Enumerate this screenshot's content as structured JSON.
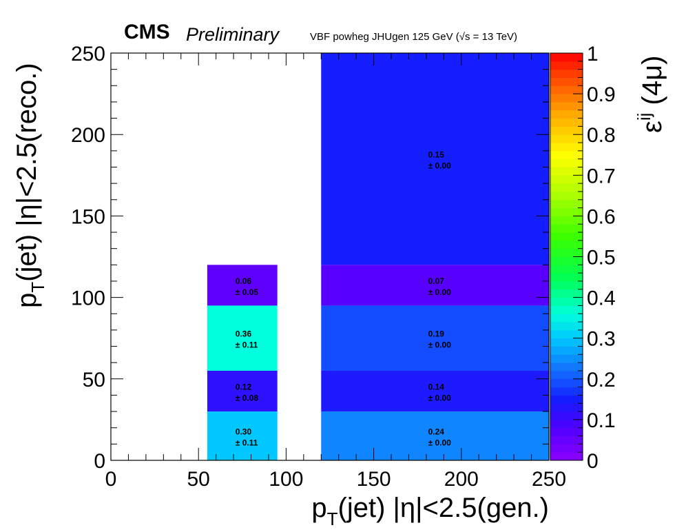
{
  "header": {
    "experiment": "CMS",
    "status": "Preliminary",
    "process": "VBF powheg JHUgen 125 GeV (√s = 13 TeV)"
  },
  "chart_data": {
    "type": "heatmap",
    "xlabel": {
      "main": "p",
      "sub": "T",
      "rest": "(jet) |η|<2.5(gen.)"
    },
    "ylabel": {
      "main": "p",
      "sub": "T",
      "rest": "(jet) |η|<2.5(reco.)"
    },
    "zlabel": {
      "main": "ε",
      "sup": "ij",
      "rest": " (4μ)"
    },
    "xlim": [
      0,
      250
    ],
    "ylim": [
      0,
      250
    ],
    "zlim": [
      0,
      1
    ],
    "x_ticks": [
      0,
      50,
      100,
      150,
      200,
      250
    ],
    "y_ticks": [
      0,
      50,
      100,
      150,
      200,
      250
    ],
    "z_ticks": [
      0,
      0.1,
      0.2,
      0.3,
      0.4,
      0.5,
      0.6,
      0.7,
      0.8,
      0.9,
      1
    ],
    "cells": [
      {
        "x": [
          55,
          95
        ],
        "y": [
          0,
          30
        ],
        "value": 0.3,
        "label": "0.30",
        "error_label": "± 0.11"
      },
      {
        "x": [
          55,
          95
        ],
        "y": [
          30,
          55
        ],
        "value": 0.12,
        "label": "0.12",
        "error_label": "± 0.08"
      },
      {
        "x": [
          55,
          95
        ],
        "y": [
          55,
          95
        ],
        "value": 0.36,
        "label": "0.36",
        "error_label": "± 0.11"
      },
      {
        "x": [
          55,
          95
        ],
        "y": [
          95,
          120
        ],
        "value": 0.06,
        "label": "0.06",
        "error_label": "± 0.05"
      },
      {
        "x": [
          120,
          250
        ],
        "y": [
          0,
          30
        ],
        "value": 0.24,
        "label": "0.24",
        "error_label": "± 0.00"
      },
      {
        "x": [
          120,
          250
        ],
        "y": [
          30,
          55
        ],
        "value": 0.14,
        "label": "0.14",
        "error_label": "± 0.00"
      },
      {
        "x": [
          120,
          250
        ],
        "y": [
          55,
          95
        ],
        "value": 0.19,
        "label": "0.19",
        "error_label": "± 0.00"
      },
      {
        "x": [
          120,
          250
        ],
        "y": [
          95,
          120
        ],
        "value": 0.07,
        "label": "0.07",
        "error_label": "± 0.00"
      },
      {
        "x": [
          120,
          250
        ],
        "y": [
          120,
          250
        ],
        "value": 0.15,
        "label": "0.15",
        "error_label": "± 0.00"
      }
    ],
    "palette": "rainbow (violet → blue → cyan → green → yellow → orange → red)"
  }
}
